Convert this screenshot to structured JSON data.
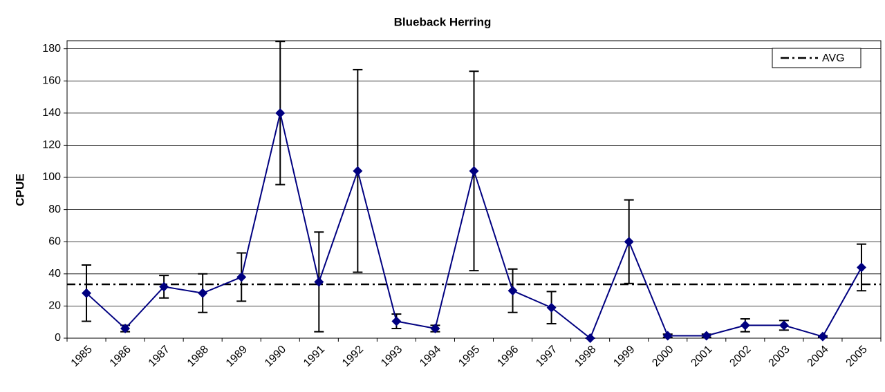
{
  "chart_data": {
    "type": "line",
    "title": "Blueback Herring",
    "y_label": "CPUE",
    "categories": [
      "1985",
      "1986",
      "1987",
      "1988",
      "1989",
      "1990",
      "1991",
      "1992",
      "1993",
      "1994",
      "1995",
      "1996",
      "1997",
      "1998",
      "1999",
      "2000",
      "2001",
      "2002",
      "2003",
      "2004",
      "2005"
    ],
    "series": [
      {
        "color": "#000080",
        "values": [
          28,
          6,
          32,
          28,
          38,
          140,
          35,
          104,
          10.5,
          6,
          104,
          29.5,
          19,
          0,
          60,
          1.5,
          1.5,
          8,
          8,
          1,
          44
        ],
        "errors": [
          17.5,
          2,
          7,
          12,
          15,
          44.5,
          31,
          63,
          4.5,
          2,
          62,
          13.5,
          10,
          0,
          26,
          1,
          1,
          4,
          3,
          0.5,
          14.5
        ]
      }
    ],
    "reference_line": {
      "name": "AVG",
      "value": 33.5,
      "color": "#000000"
    },
    "ylim": [
      0,
      185
    ],
    "yticks": [
      0,
      20,
      40,
      60,
      80,
      100,
      120,
      140,
      160,
      180
    ],
    "grid": true,
    "legend": "upper right"
  }
}
